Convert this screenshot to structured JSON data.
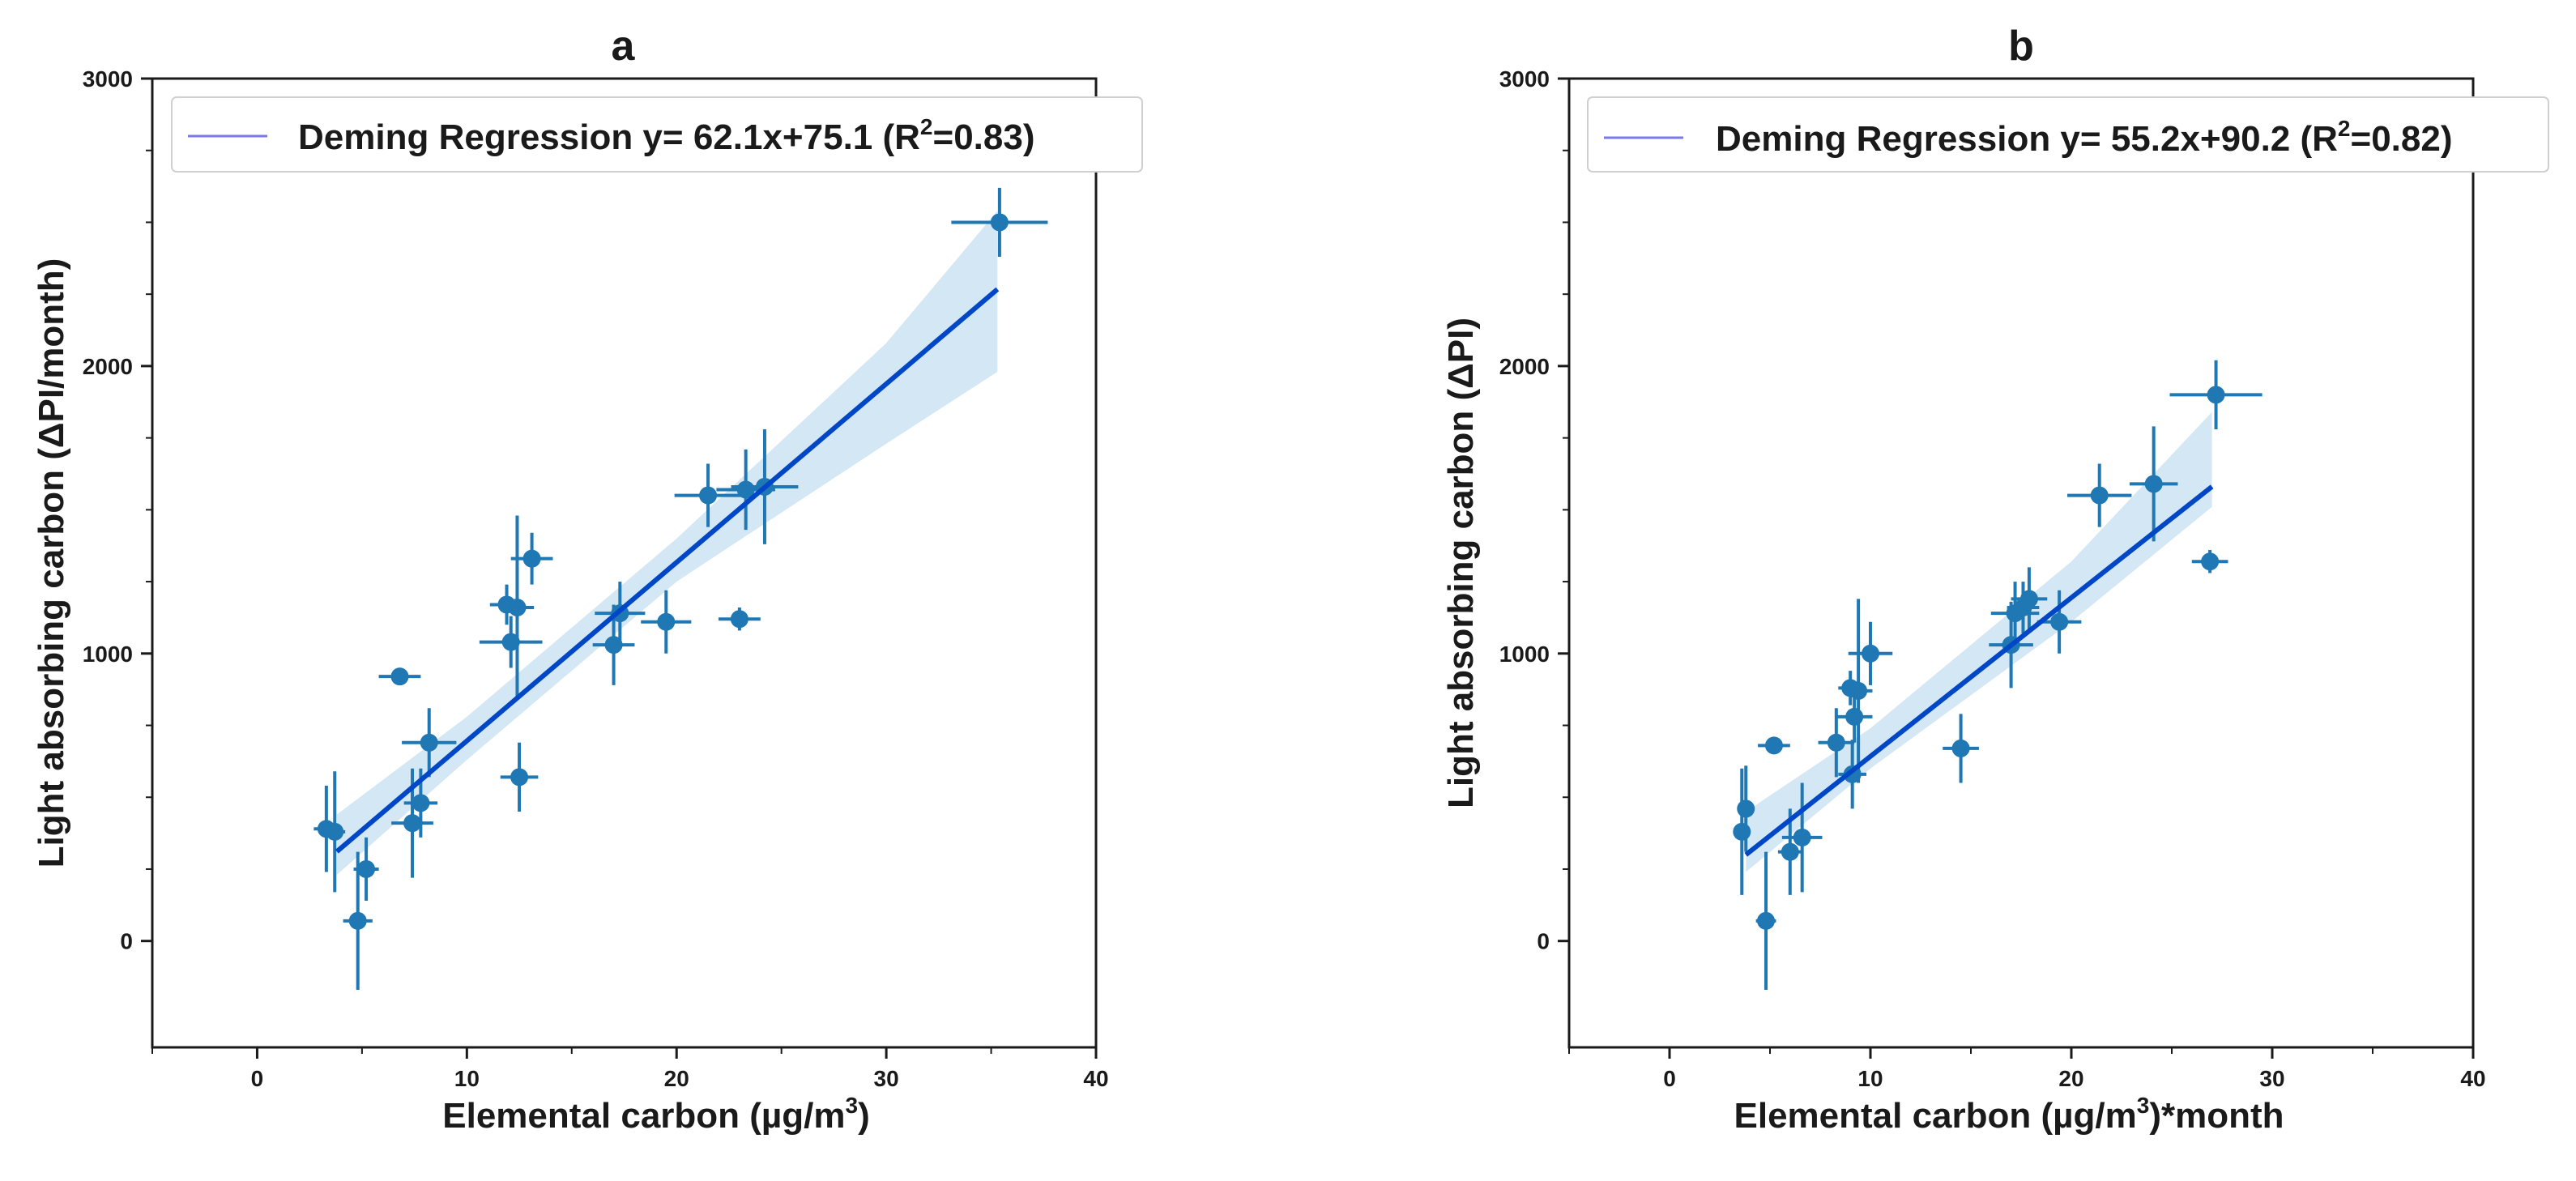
{
  "chart_data": [
    {
      "type": "scatter",
      "title": "a",
      "xlabel_main": "Elemental carbon (µg/m",
      "xlabel_sup": "3",
      "xlabel_tail": ")",
      "ylabel": "Light absorbing carbon (ΔPI/month)",
      "xlim": [
        -5,
        40
      ],
      "ylim": [
        -370,
        3000
      ],
      "xticks": [
        0,
        10,
        20,
        30,
        40
      ],
      "yticks": [
        0,
        1000,
        2000,
        3000
      ],
      "legend_pre": "Deming Regression y= 62.1x+75.1 (R",
      "legend_sup": "2",
      "legend_post": "=0.83)",
      "fit": {
        "slope": 62.1,
        "intercept": 75.1,
        "x_range": [
          3.8,
          35.3
        ]
      },
      "band": {
        "x": [
          3.8,
          10,
          20,
          30,
          35.3
        ],
        "lower": [
          230,
          630,
          1250,
          1730,
          1980
        ],
        "upper": [
          440,
          780,
          1400,
          2080,
          2540
        ]
      },
      "points": [
        {
          "x": 3.3,
          "y": 390,
          "xerr": 0.6,
          "yerr": 150
        },
        {
          "x": 3.7,
          "y": 380,
          "xerr": 0.5,
          "yerr": 210
        },
        {
          "x": 4.8,
          "y": 70,
          "xerr": 0.7,
          "yerr": 240
        },
        {
          "x": 5.2,
          "y": 250,
          "xerr": 0.6,
          "yerr": 110
        },
        {
          "x": 6.8,
          "y": 920,
          "xerr": 1.0,
          "yerr": 20
        },
        {
          "x": 7.4,
          "y": 410,
          "xerr": 1.0,
          "yerr": 190
        },
        {
          "x": 7.8,
          "y": 480,
          "xerr": 0.8,
          "yerr": 120
        },
        {
          "x": 8.2,
          "y": 690,
          "xerr": 1.3,
          "yerr": 120
        },
        {
          "x": 11.9,
          "y": 1170,
          "xerr": 0.8,
          "yerr": 70
        },
        {
          "x": 12.1,
          "y": 1040,
          "xerr": 1.5,
          "yerr": 90
        },
        {
          "x": 12.4,
          "y": 1160,
          "xerr": 0.8,
          "yerr": 320
        },
        {
          "x": 12.5,
          "y": 570,
          "xerr": 0.9,
          "yerr": 120
        },
        {
          "x": 13.1,
          "y": 1330,
          "xerr": 1.0,
          "yerr": 90
        },
        {
          "x": 17.0,
          "y": 1030,
          "xerr": 1.0,
          "yerr": 140
        },
        {
          "x": 17.3,
          "y": 1140,
          "xerr": 1.2,
          "yerr": 110
        },
        {
          "x": 19.5,
          "y": 1110,
          "xerr": 1.2,
          "yerr": 110
        },
        {
          "x": 21.5,
          "y": 1550,
          "xerr": 1.6,
          "yerr": 110
        },
        {
          "x": 23.0,
          "y": 1120,
          "xerr": 1.0,
          "yerr": 40
        },
        {
          "x": 23.3,
          "y": 1570,
          "xerr": 1.4,
          "yerr": 140
        },
        {
          "x": 24.2,
          "y": 1580,
          "xerr": 1.6,
          "yerr": 200
        },
        {
          "x": 35.4,
          "y": 2500,
          "xerr": 2.3,
          "yerr": 120
        }
      ]
    },
    {
      "type": "scatter",
      "title": "b",
      "xlabel_main": "Elemental carbon (µg/m",
      "xlabel_sup": "3",
      "xlabel_tail": ")*month",
      "ylabel": "Light absorbing carbon (ΔPI)",
      "xlim": [
        -5,
        40
      ],
      "ylim": [
        -370,
        3000
      ],
      "xticks": [
        0,
        10,
        20,
        30,
        40
      ],
      "yticks": [
        0,
        1000,
        2000,
        3000
      ],
      "legend_pre": "Deming Regression y= 55.2x+90.2 (R",
      "legend_sup": "2",
      "legend_post": "=0.82)",
      "fit": {
        "slope": 55.2,
        "intercept": 90.2,
        "x_range": [
          3.8,
          27.0
        ]
      },
      "band": {
        "x": [
          3.8,
          10,
          20,
          27.0
        ],
        "lower": [
          240,
          600,
          1110,
          1510
        ],
        "upper": [
          450,
          740,
          1320,
          1840
        ]
      },
      "points": [
        {
          "x": 3.6,
          "y": 380,
          "xerr": 0.4,
          "yerr": 220
        },
        {
          "x": 3.8,
          "y": 460,
          "xerr": 0.4,
          "yerr": 150
        },
        {
          "x": 4.8,
          "y": 70,
          "xerr": 0.5,
          "yerr": 240
        },
        {
          "x": 5.2,
          "y": 680,
          "xerr": 0.8,
          "yerr": 20
        },
        {
          "x": 6.0,
          "y": 310,
          "xerr": 0.6,
          "yerr": 150
        },
        {
          "x": 6.6,
          "y": 360,
          "xerr": 1.0,
          "yerr": 190
        },
        {
          "x": 8.3,
          "y": 690,
          "xerr": 0.9,
          "yerr": 120
        },
        {
          "x": 9.0,
          "y": 880,
          "xerr": 0.6,
          "yerr": 60
        },
        {
          "x": 9.1,
          "y": 580,
          "xerr": 0.7,
          "yerr": 120
        },
        {
          "x": 9.2,
          "y": 780,
          "xerr": 0.9,
          "yerr": 90
        },
        {
          "x": 9.4,
          "y": 870,
          "xerr": 0.7,
          "yerr": 320
        },
        {
          "x": 10.0,
          "y": 1000,
          "xerr": 1.1,
          "yerr": 110
        },
        {
          "x": 14.5,
          "y": 670,
          "xerr": 0.9,
          "yerr": 120
        },
        {
          "x": 17.0,
          "y": 1030,
          "xerr": 1.1,
          "yerr": 150
        },
        {
          "x": 17.2,
          "y": 1140,
          "xerr": 1.2,
          "yerr": 110
        },
        {
          "x": 17.6,
          "y": 1160,
          "xerr": 0.8,
          "yerr": 90
        },
        {
          "x": 17.9,
          "y": 1190,
          "xerr": 0.9,
          "yerr": 110
        },
        {
          "x": 19.4,
          "y": 1110,
          "xerr": 1.1,
          "yerr": 110
        },
        {
          "x": 21.4,
          "y": 1550,
          "xerr": 1.6,
          "yerr": 110
        },
        {
          "x": 24.1,
          "y": 1590,
          "xerr": 1.2,
          "yerr": 200
        },
        {
          "x": 26.9,
          "y": 1320,
          "xerr": 0.9,
          "yerr": 40
        },
        {
          "x": 27.2,
          "y": 1900,
          "xerr": 2.3,
          "yerr": 120
        }
      ]
    }
  ],
  "colors": {
    "point": "#1f77b4",
    "fit_line": "#0047c8",
    "band": "#c6dff0",
    "legend_line": "#7b78ea",
    "axis": "#1a1a1a"
  }
}
